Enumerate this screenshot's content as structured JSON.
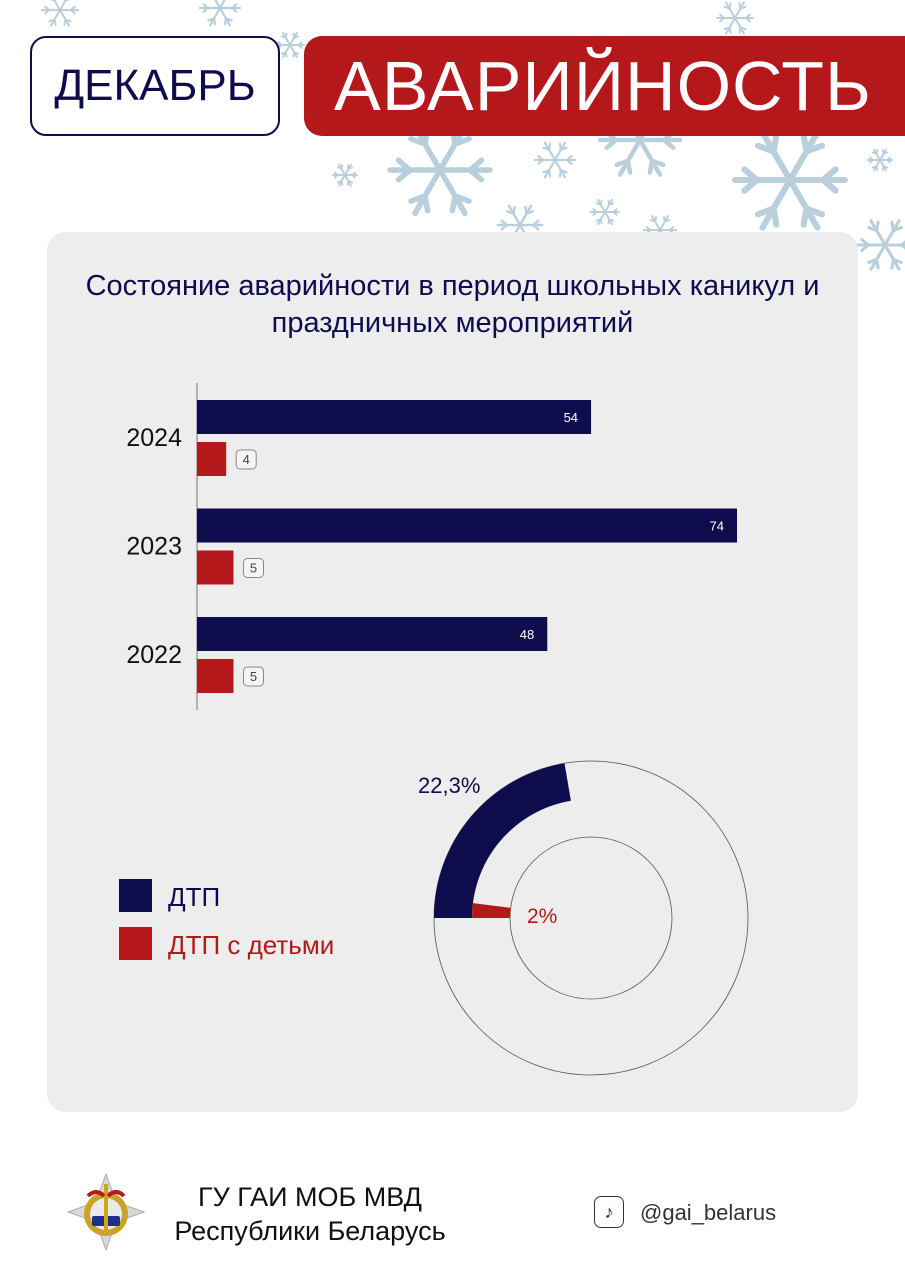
{
  "header": {
    "month": "ДЕКАБРЬ",
    "title": "АВАРИЙНОСТЬ"
  },
  "colors": {
    "navy": "#0f0c4d",
    "red": "#b5181b",
    "card": "#ededed",
    "snow": "#b9cfdc"
  },
  "chart_data": [
    {
      "type": "bar",
      "orientation": "horizontal",
      "title": "Состояние аварийности в период школьных каникул и праздничных мероприятий",
      "categories": [
        "2024",
        "2023",
        "2022"
      ],
      "series": [
        {
          "name": "ДТП",
          "color": "#0f0c4d",
          "values": [
            54,
            74,
            48
          ]
        },
        {
          "name": "ДТП с детьми",
          "color": "#b5181b",
          "values": [
            4,
            5,
            5
          ]
        }
      ],
      "value_labels": {
        "ДТП": [
          "54",
          "74",
          "48"
        ],
        "ДТП с детьми": [
          "4",
          "5",
          "5"
        ]
      },
      "xlim": [
        0,
        74
      ],
      "grid": false
    },
    {
      "type": "pie",
      "variant": "concentric-donut",
      "series": [
        {
          "name": "ДТП",
          "color": "#0f0c4d",
          "value": 22.3,
          "label": "22,3%"
        },
        {
          "name": "ДТП с детьми",
          "color": "#b5181b",
          "value": 2,
          "label": "2%"
        }
      ],
      "legend": {
        "position": "left",
        "entries": [
          "ДТП",
          "ДТП с детьми"
        ]
      }
    }
  ],
  "footer": {
    "org_line1": "ГУ ГАИ МОБ МВД",
    "org_line2": "Республики Беларусь",
    "social_icon": "tiktok-icon",
    "handle": "@gai_belarus"
  }
}
